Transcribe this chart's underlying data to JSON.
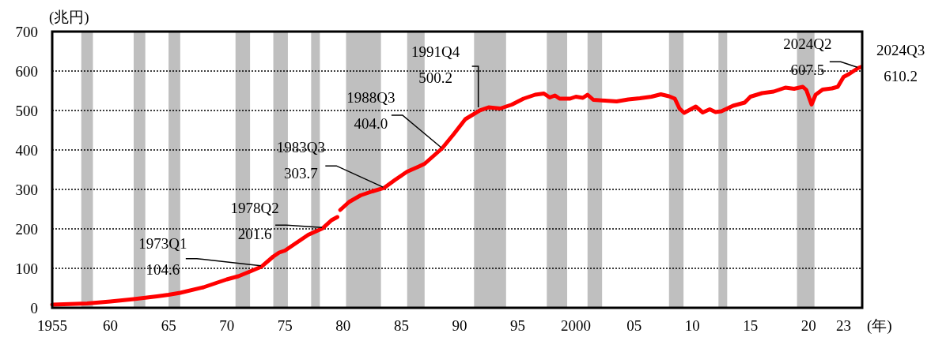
{
  "chart_data": {
    "type": "line",
    "ylabel": "(兆円)",
    "xlabel": "(年)",
    "x": [
      1955.0,
      1957.0,
      1958.0,
      1960.0,
      1962.0,
      1964.0,
      1965.0,
      1966.0,
      1968.0,
      1970.0,
      1971.0,
      1972.0,
      1973.0,
      1974.0,
      1974.5,
      1975.0,
      1976.0,
      1977.0,
      1978.25,
      1979.0,
      1979.5,
      1979.65,
      1979.75,
      1980.5,
      1981.5,
      1982.5,
      1983.5,
      1984.5,
      1985.5,
      1986.5,
      1987.0,
      1988.5,
      1989.5,
      1990.5,
      1991.75,
      1992.5,
      1993.5,
      1994.5,
      1995.5,
      1996.5,
      1997.25,
      1997.75,
      1998.2,
      1998.6,
      1999.5,
      2000.0,
      2000.6,
      2001.0,
      2001.5,
      2002.5,
      2003.5,
      2004.5,
      2005.5,
      2006.5,
      2007.3,
      2008.0,
      2008.5,
      2008.9,
      2009.3,
      2010.3,
      2010.9,
      2011.5,
      2012.0,
      2012.5,
      2013.5,
      2014.5,
      2015.0,
      2016.0,
      2017.0,
      2018.0,
      2018.75,
      2019.5,
      2019.8,
      2020.25,
      2020.6,
      2021.2,
      2022.0,
      2022.5,
      2023.0,
      2023.5,
      2024.25,
      2024.5
    ],
    "series": [
      {
        "color": "#ff0000",
        "line_style": "solid",
        "values": [
          8,
          10,
          11,
          16,
          22,
          29,
          33,
          38,
          52,
          72,
          80,
          92,
          104.6,
          130,
          140,
          145,
          165,
          185,
          201.6,
          222,
          230,
          null,
          248,
          268,
          285,
          295,
          303.7,
          325,
          345,
          358,
          365,
          404.0,
          440,
          478,
          500.2,
          508,
          505,
          515,
          530,
          540,
          543,
          533,
          538,
          530,
          530,
          535,
          532,
          540,
          527,
          525,
          523,
          528,
          531,
          535,
          541,
          536,
          530,
          505,
          494,
          510,
          495,
          503,
          496,
          498,
          512,
          520,
          535,
          544,
          548,
          558,
          555,
          560,
          552,
          515,
          540,
          553,
          556,
          560,
          585,
          593,
          607.5,
          610.2
        ]
      }
    ],
    "xlim": [
      1955,
      2024.6
    ],
    "xticks": [
      {
        "value": 1955,
        "label": "1955"
      },
      {
        "value": 1960,
        "label": "60"
      },
      {
        "value": 1965,
        "label": "65"
      },
      {
        "value": 1970,
        "label": "70"
      },
      {
        "value": 1975,
        "label": "75"
      },
      {
        "value": 1980,
        "label": "80"
      },
      {
        "value": 1985,
        "label": "85"
      },
      {
        "value": 1990,
        "label": "90"
      },
      {
        "value": 1995,
        "label": "95"
      },
      {
        "value": 2000,
        "label": "2000"
      },
      {
        "value": 2005,
        "label": "05"
      },
      {
        "value": 2010,
        "label": "10"
      },
      {
        "value": 2015,
        "label": "15"
      },
      {
        "value": 2020,
        "label": "20"
      },
      {
        "value": 2023,
        "label": "23"
      }
    ],
    "ylim": [
      0,
      700
    ],
    "yticks": [
      0,
      100,
      200,
      300,
      400,
      500,
      600,
      700
    ],
    "grid": "y",
    "bands": [
      {
        "axis": "x",
        "from": 1957.5,
        "to": 1958.5,
        "color": "#bfbfbf"
      },
      {
        "axis": "x",
        "from": 1962.0,
        "to": 1963.0,
        "color": "#bfbfbf"
      },
      {
        "axis": "x",
        "from": 1965.0,
        "to": 1966.0,
        "color": "#bfbfbf"
      },
      {
        "axis": "x",
        "from": 1970.75,
        "to": 1972.0,
        "color": "#bfbfbf"
      },
      {
        "axis": "x",
        "from": 1974.0,
        "to": 1975.25,
        "color": "#bfbfbf"
      },
      {
        "axis": "x",
        "from": 1977.25,
        "to": 1978.0,
        "color": "#bfbfbf"
      },
      {
        "axis": "x",
        "from": 1980.25,
        "to": 1983.25,
        "color": "#bfbfbf"
      },
      {
        "axis": "x",
        "from": 1985.5,
        "to": 1987.0,
        "color": "#bfbfbf"
      },
      {
        "axis": "x",
        "from": 1991.25,
        "to": 1994.0,
        "color": "#bfbfbf"
      },
      {
        "axis": "x",
        "from": 1997.5,
        "to": 1999.25,
        "color": "#bfbfbf"
      },
      {
        "axis": "x",
        "from": 2001.0,
        "to": 2002.25,
        "color": "#bfbfbf"
      },
      {
        "axis": "x",
        "from": 2008.0,
        "to": 2009.25,
        "color": "#bfbfbf"
      },
      {
        "axis": "x",
        "from": 2012.25,
        "to": 2013.0,
        "color": "#bfbfbf"
      },
      {
        "axis": "x",
        "from": 2019.0,
        "to": 2020.5,
        "color": "#bfbfbf"
      }
    ],
    "annotations": [
      {
        "text": "1973Q1\n104.6",
        "x": 1973.0,
        "y": 104.6
      },
      {
        "text": "1978Q2\n201.6",
        "x": 1978.25,
        "y": 201.6
      },
      {
        "text": "1983Q3\n303.7",
        "x": 1983.5,
        "y": 303.7
      },
      {
        "text": "1988Q3\n404.0",
        "x": 1988.5,
        "y": 404.0
      },
      {
        "text": "1991Q4\n500.2",
        "x": 1991.75,
        "y": 500.2
      },
      {
        "text": "2024Q2\n607.5",
        "x": 2024.25,
        "y": 607.5
      },
      {
        "text": "2024Q3\n610.2",
        "x": 2024.5,
        "y": 610.2
      }
    ]
  }
}
